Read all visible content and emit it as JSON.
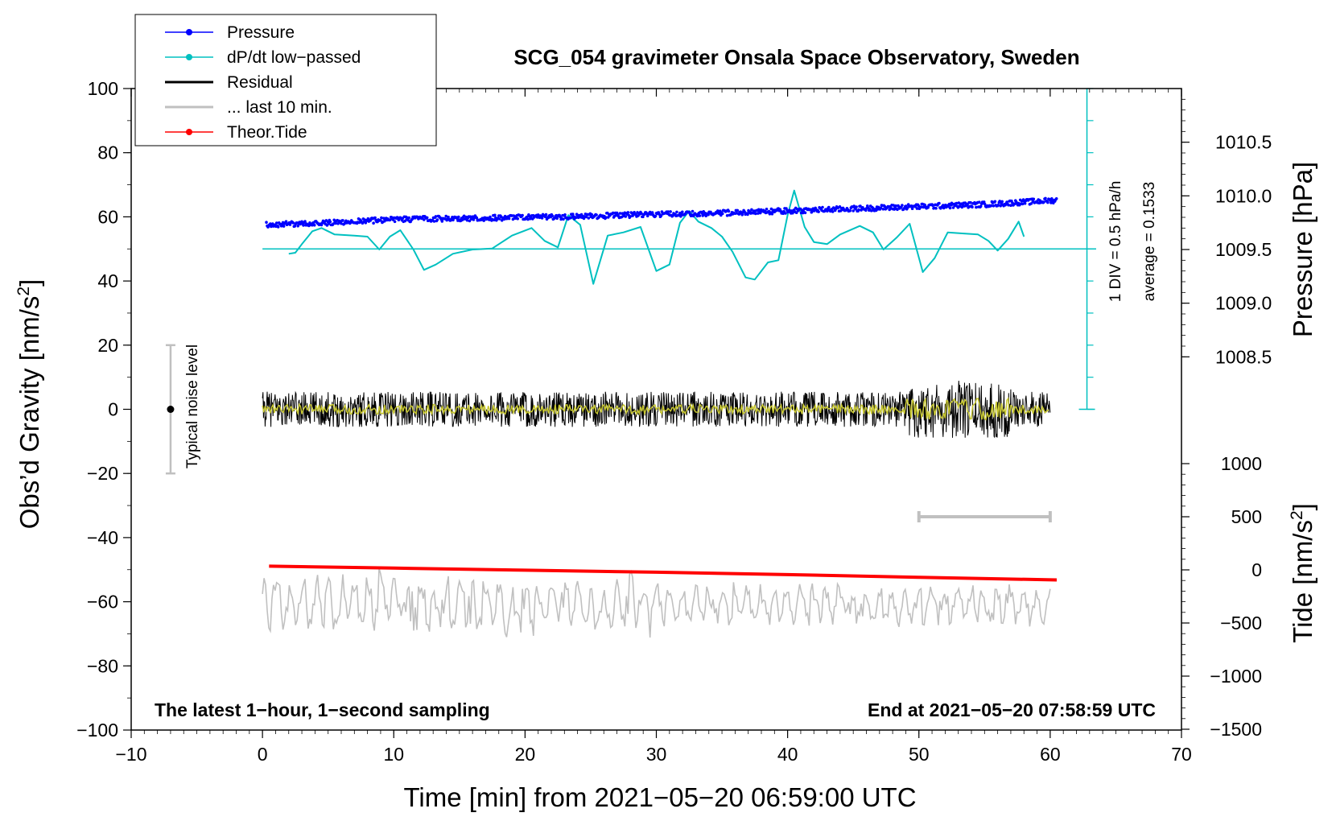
{
  "chart_data": {
    "type": "line",
    "title": "SCG_054 gravimeter Onsala Space Observatory, Sweden",
    "xlabel": "Time [min] from 2021−05−20 06:59:00 UTC",
    "ylabel_left": "Obs’d Gravity [nm/s",
    "ylabel_pressure": "Pressure [hPa]",
    "ylabel_tide": "Tide [nm/s",
    "units_exponent": "2",
    "units_close": "]",
    "xlim": [
      -10,
      70
    ],
    "ylim_left": [
      -100,
      100
    ],
    "ylim_pressure": [
      1008.0,
      1011.0
    ],
    "ylim_tide": [
      -1500,
      1500
    ],
    "x_ticks": [
      "−10",
      "0",
      "10",
      "20",
      "30",
      "40",
      "50",
      "60",
      "70"
    ],
    "y_ticks_left": [
      "−100",
      "−80",
      "−60",
      "−40",
      "−20",
      "0",
      "20",
      "40",
      "60",
      "80",
      "100"
    ],
    "y_ticks_pressure": [
      "1008.5",
      "1009.0",
      "1009.5",
      "1010.0",
      "1010.5"
    ],
    "y_ticks_tide": [
      "−1500",
      "−1000",
      "−500",
      "0",
      "500",
      "1000"
    ],
    "legend": [
      {
        "label": "Pressure",
        "color": "#0000ff",
        "marker": true
      },
      {
        "label": "dP/dt low−passed",
        "color": "#00c0c0",
        "marker": true
      },
      {
        "label": "Residual",
        "color": "#000000",
        "marker": false
      },
      {
        "label": "... last 10 min.",
        "color": "#c0c0c0",
        "marker": false
      },
      {
        "label": "Theor.Tide",
        "color": "#ff0000",
        "marker": true
      }
    ],
    "noise_label": "Typical noise level",
    "noise_range": [
      -20,
      20
    ],
    "noise_x": -7,
    "scale_note_1": "1 DIV = 0.5 hPa/h",
    "scale_note_2": "average = 0.1533",
    "note_left": "The latest 1−hour, 1−second sampling",
    "note_right": "End at 2021−05−20 07:58:59 UTC",
    "last10_bar": [
      50,
      60
    ],
    "last10_level": 500,
    "series": [
      {
        "name": "Pressure",
        "color": "#0000ff",
        "x": [
          0.3,
          5,
          10,
          15,
          20,
          25,
          30,
          35,
          40,
          45,
          50,
          55,
          60.5
        ],
        "y": [
          1009.73,
          1009.75,
          1009.78,
          1009.79,
          1009.8,
          1009.81,
          1009.83,
          1009.84,
          1009.86,
          1009.88,
          1009.9,
          1009.92,
          1009.96
        ]
      },
      {
        "name": "dP/dt low-passed",
        "color": "#00c0c0",
        "x": [
          2,
          2.5,
          3,
          3.8,
          4.5,
          5.5,
          7,
          8,
          8.9,
          9.7,
          10.5,
          11.5,
          12.3,
          13.2,
          14.5,
          16,
          17.5,
          19,
          20.5,
          21.5,
          22.5,
          23.3,
          24.2,
          25.2,
          26.3,
          27.5,
          28.8,
          30,
          31,
          31.8,
          32.5,
          33.2,
          34.2,
          35,
          35.8,
          36.8,
          37.5,
          38.5,
          39.3,
          40,
          40.5,
          41.3,
          42,
          43,
          44,
          45.5,
          46.5,
          47.3,
          48.3,
          49.3,
          50.3,
          51.2,
          52.2,
          53.3,
          54.5,
          55.3,
          56,
          56.8,
          57.6,
          58
        ],
        "y": [
          1009.46,
          1009.47,
          1009.55,
          1009.67,
          1009.7,
          1009.64,
          1009.63,
          1009.62,
          1009.5,
          1009.62,
          1009.68,
          1009.5,
          1009.31,
          1009.36,
          1009.46,
          1009.5,
          1009.51,
          1009.63,
          1009.7,
          1009.58,
          1009.52,
          1009.82,
          1009.73,
          1009.18,
          1009.63,
          1009.66,
          1009.71,
          1009.3,
          1009.36,
          1009.75,
          1009.86,
          1009.76,
          1009.7,
          1009.62,
          1009.48,
          1009.24,
          1009.22,
          1009.38,
          1009.4,
          1009.82,
          1010.05,
          1009.71,
          1009.57,
          1009.55,
          1009.64,
          1009.72,
          1009.66,
          1009.5,
          1009.61,
          1009.74,
          1009.29,
          1009.42,
          1009.66,
          1009.65,
          1009.64,
          1009.58,
          1009.49,
          1009.6,
          1009.76,
          1009.62
        ]
      },
      {
        "name": "Residual",
        "color": "#000000",
        "x": [
          0,
          10,
          20,
          30,
          40,
          50,
          52.5,
          55,
          60
        ],
        "y": [
          0,
          0,
          0,
          0,
          0,
          0,
          0,
          0,
          0
        ]
      },
      {
        "name": "... last 10 min.",
        "color": "#c0c0c0",
        "x": [
          0,
          10,
          20,
          30,
          40,
          50,
          60
        ],
        "y": [
          -60,
          -60,
          -61,
          -61,
          -61,
          -61,
          -61
        ]
      },
      {
        "name": "Theor.Tide",
        "color": "#ff0000",
        "x": [
          0.5,
          10,
          20,
          30,
          40,
          50,
          60.5
        ],
        "y": [
          35,
          17,
          -3,
          -22,
          -45,
          -70,
          -95
        ]
      }
    ]
  }
}
